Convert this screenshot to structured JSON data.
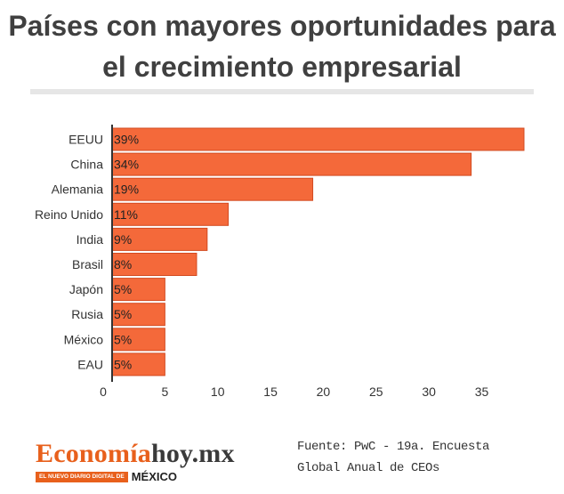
{
  "title": "Países con mayores oportunidades para el crecimiento empresarial",
  "chart_data": {
    "type": "bar",
    "orientation": "horizontal",
    "categories": [
      "EEUU",
      "China",
      "Alemania",
      "Reino Unido",
      "India",
      "Brasil",
      "Japón",
      "Rusia",
      "México",
      "EAU"
    ],
    "values": [
      39,
      34,
      19,
      11,
      9,
      8,
      5,
      5,
      5,
      5
    ],
    "value_labels": [
      "39%",
      "34%",
      "19%",
      "11%",
      "9%",
      "8%",
      "5%",
      "5%",
      "5%",
      "5%"
    ],
    "x_ticks": [
      "0",
      "5",
      "10",
      "15",
      "20",
      "25",
      "30",
      "35"
    ],
    "xlim": [
      0,
      39
    ],
    "grid": false,
    "colors": {
      "bar": "#f4693a",
      "bar_border": "#d24a20",
      "axis": "#333333"
    }
  },
  "source": "Fuente: PwC - 19a. Encuesta Global Anual de CEOs",
  "logo": {
    "name_part1": "Economía",
    "name_part2": "hoy.mx",
    "tagline": "EL NUEVO DIARIO DIGITAL DE",
    "country": "MÉXICO"
  }
}
